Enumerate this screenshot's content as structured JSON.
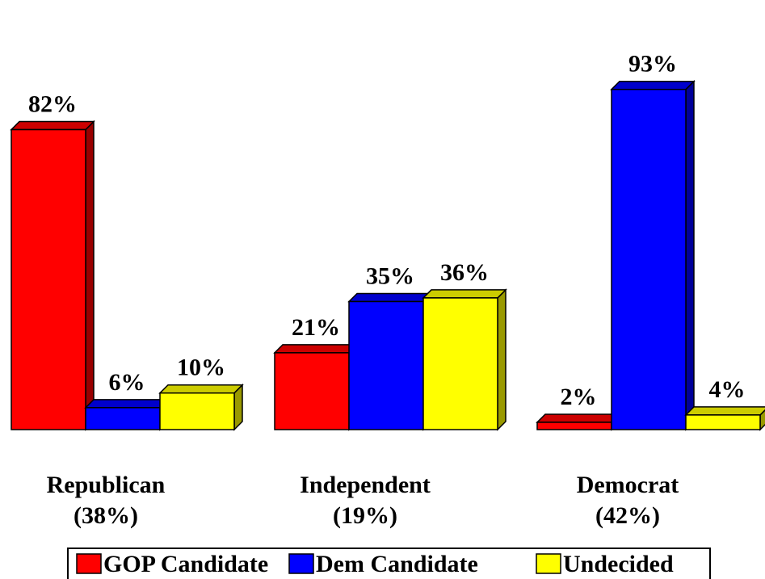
{
  "chart_data": {
    "type": "bar",
    "categories": [
      "Republican",
      "Independent",
      "Democrat"
    ],
    "category_shares": [
      "(38%)",
      "(19%)",
      "(42%)"
    ],
    "series": [
      {
        "name": "GOP Candidate",
        "values": [
          82,
          21,
          2
        ],
        "labels": [
          "82%",
          "21%",
          "2%"
        ],
        "color": "#ff0000",
        "side_color": "#990000",
        "top_color": "#cc0000"
      },
      {
        "name": "Dem Candidate",
        "values": [
          6,
          35,
          93
        ],
        "labels": [
          "6%",
          "35%",
          "93%"
        ],
        "color": "#0000ff",
        "side_color": "#000099",
        "top_color": "#0000cc"
      },
      {
        "name": "Undecided",
        "values": [
          10,
          36,
          4
        ],
        "labels": [
          "10%",
          "36%",
          "4%"
        ],
        "color": "#ffff00",
        "side_color": "#999900",
        "top_color": "#cccc00"
      }
    ],
    "ylim": [
      0,
      100
    ],
    "grid": false,
    "legend_position": "bottom"
  }
}
